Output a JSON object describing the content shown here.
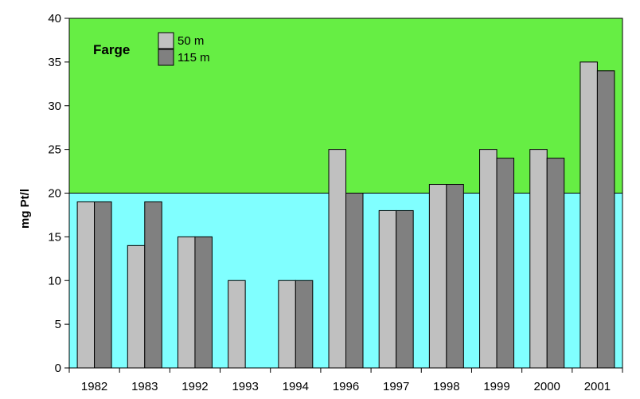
{
  "chart_data": {
    "type": "bar",
    "title": "",
    "xlabel": "",
    "ylabel": "mg Pt/l",
    "ylim": [
      0,
      40
    ],
    "yticks": [
      0,
      5,
      10,
      15,
      20,
      25,
      30,
      35,
      40
    ],
    "threshold": 20,
    "categories": [
      "1982",
      "1983",
      "1992",
      "1993",
      "1994",
      "1996",
      "1997",
      "1998",
      "1999",
      "2000",
      "2001"
    ],
    "legend": {
      "title": "Farge",
      "position": "top-left"
    },
    "series": [
      {
        "name": "50 m",
        "color": "#c0c0c0",
        "values": [
          19,
          14,
          15,
          10,
          10,
          25,
          18,
          21,
          25,
          25,
          35
        ]
      },
      {
        "name": "115 m",
        "color": "#808080",
        "values": [
          19,
          19,
          15,
          null,
          10,
          20,
          18,
          21,
          24,
          24,
          34
        ]
      }
    ],
    "colors": {
      "above_threshold": "#66ee44",
      "below_threshold": "#80ffff"
    }
  }
}
